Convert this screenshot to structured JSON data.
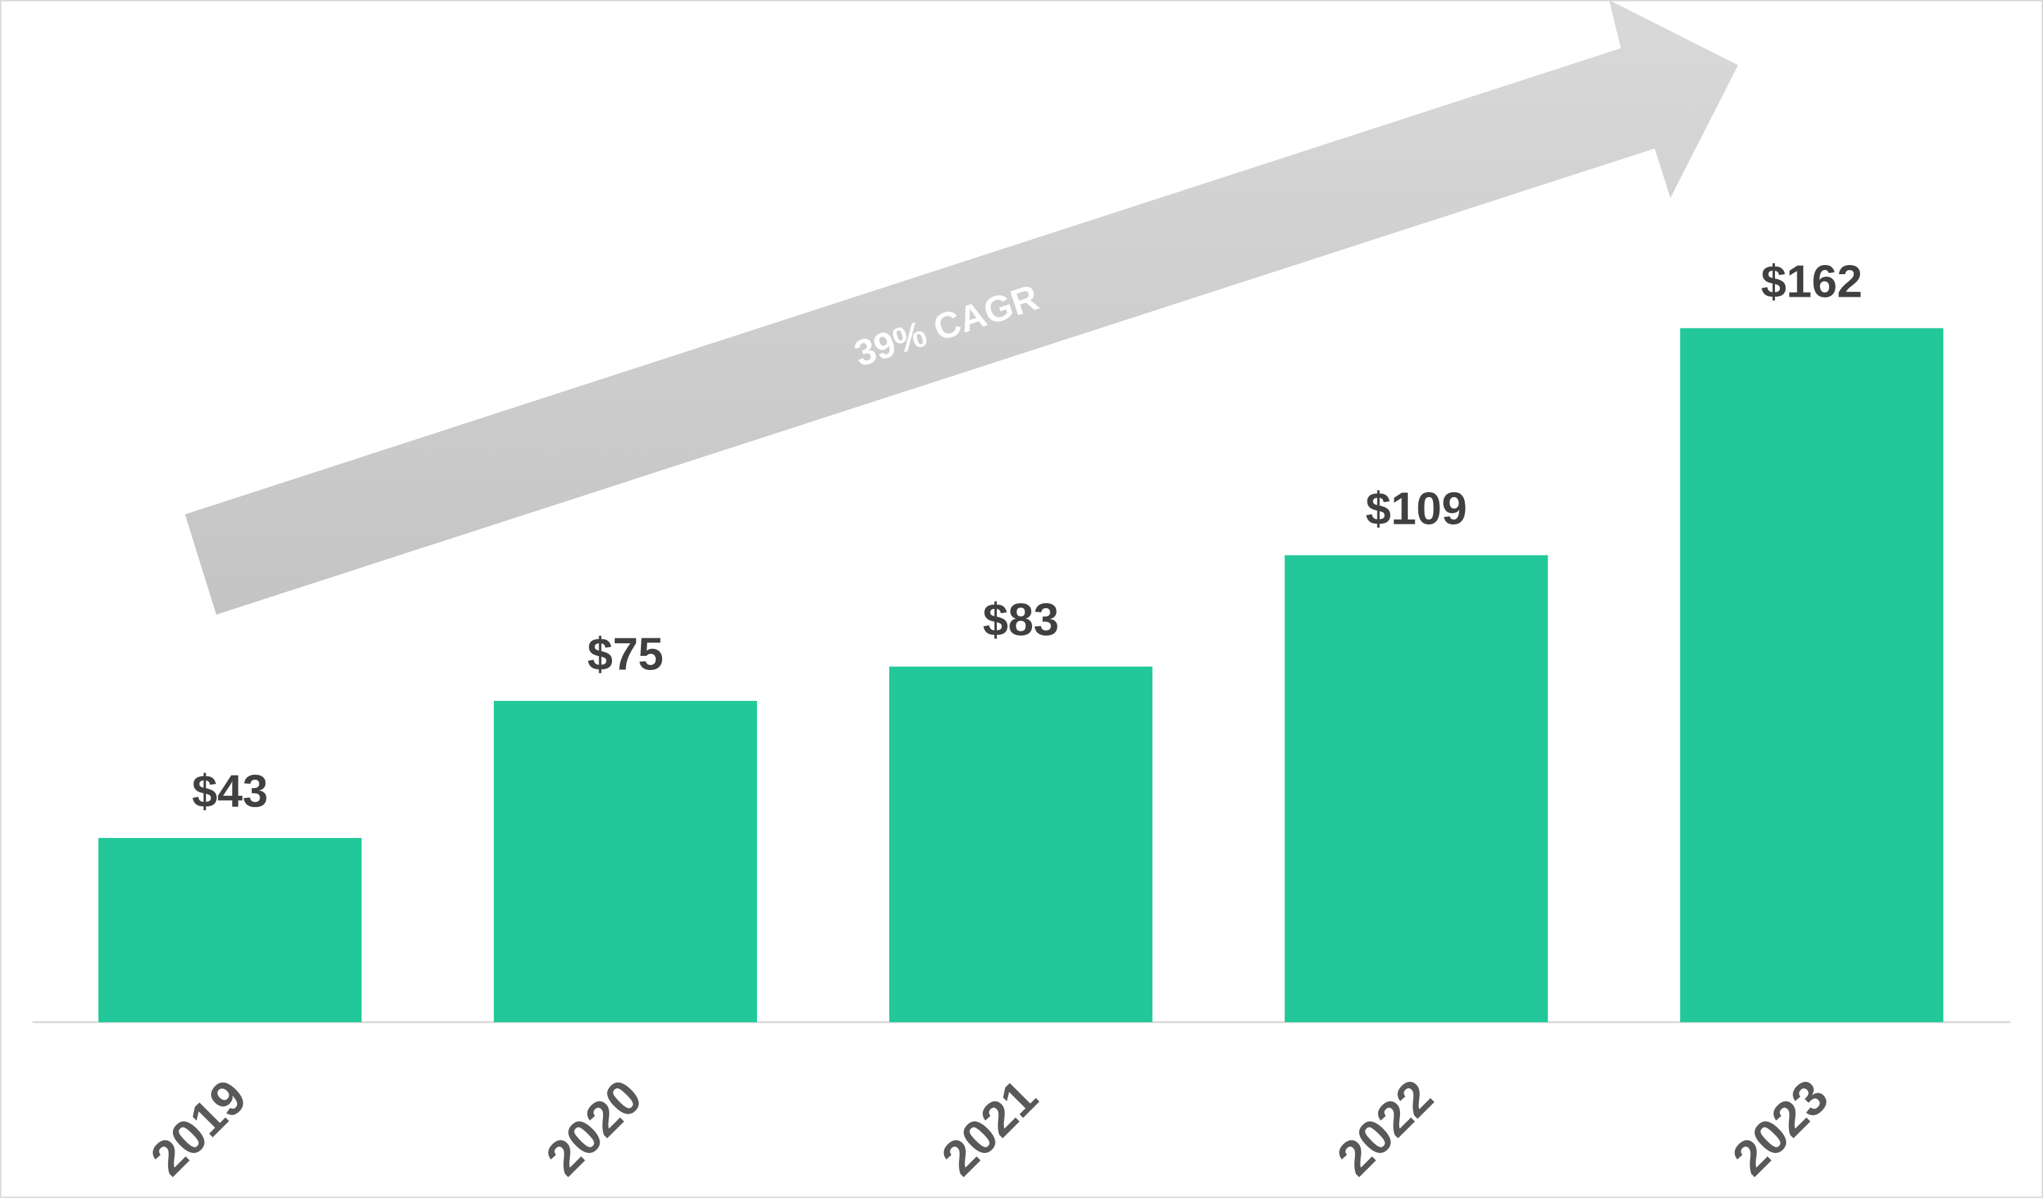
{
  "chart_data": {
    "type": "bar",
    "annotation": "39% CAGR",
    "categories": [
      "2019",
      "2020",
      "2021",
      "2022",
      "2023"
    ],
    "values": [
      43,
      75,
      83,
      109,
      162
    ],
    "value_labels": [
      "$43",
      "$75",
      "$83",
      "$109",
      "$162"
    ],
    "color": "#22c89a"
  }
}
